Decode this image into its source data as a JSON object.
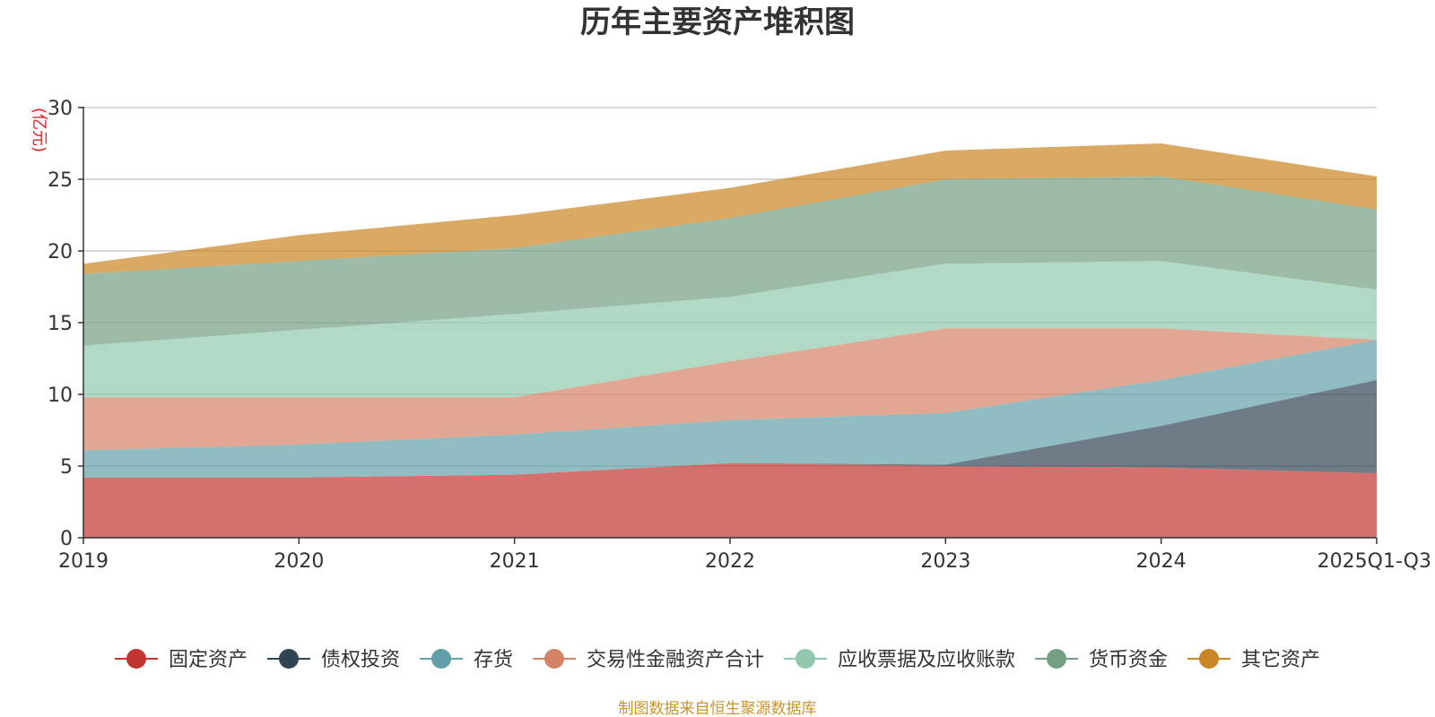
{
  "chart_data": {
    "type": "area",
    "stacked": true,
    "title": "历年主要资产堆积图",
    "ylabel": "(亿元)",
    "ylim": [
      0,
      30
    ],
    "yticks": [
      "0",
      "5",
      "10",
      "15",
      "20",
      "25",
      "30"
    ],
    "categories": [
      "2019",
      "2020",
      "2021",
      "2022",
      "2023",
      "2024",
      "2025Q1-Q3"
    ],
    "grid": true,
    "legend_position": "bottom",
    "source_note": "制图数据来自恒生聚源数据库",
    "series": [
      {
        "name": "固定资产",
        "color": "#c23531",
        "values": [
          4.2,
          4.2,
          4.4,
          5.2,
          5.0,
          4.9,
          4.5
        ]
      },
      {
        "name": "债权投资",
        "color": "#2f4554",
        "values": [
          0,
          0,
          0,
          0,
          0.1,
          2.9,
          6.5
        ]
      },
      {
        "name": "存货",
        "color": "#61a0a8",
        "values": [
          1.9,
          2.3,
          2.8,
          3.0,
          3.6,
          3.2,
          2.8
        ]
      },
      {
        "name": "交易性金融资产合计",
        "color": "#d48265",
        "values": [
          3.7,
          3.3,
          2.6,
          4.1,
          5.9,
          3.6,
          0
        ]
      },
      {
        "name": "应收票据及应收账款",
        "color": "#91c7ae",
        "values": [
          3.6,
          4.7,
          5.8,
          4.5,
          4.5,
          4.7,
          3.5
        ]
      },
      {
        "name": "货币资金",
        "color": "#749f83",
        "values": [
          5.0,
          4.8,
          4.6,
          5.5,
          5.9,
          5.9,
          5.6
        ]
      },
      {
        "name": "其它资产",
        "color": "#ca8622",
        "values": [
          0.7,
          1.8,
          2.3,
          2.1,
          2.0,
          2.3,
          2.3
        ]
      }
    ]
  }
}
